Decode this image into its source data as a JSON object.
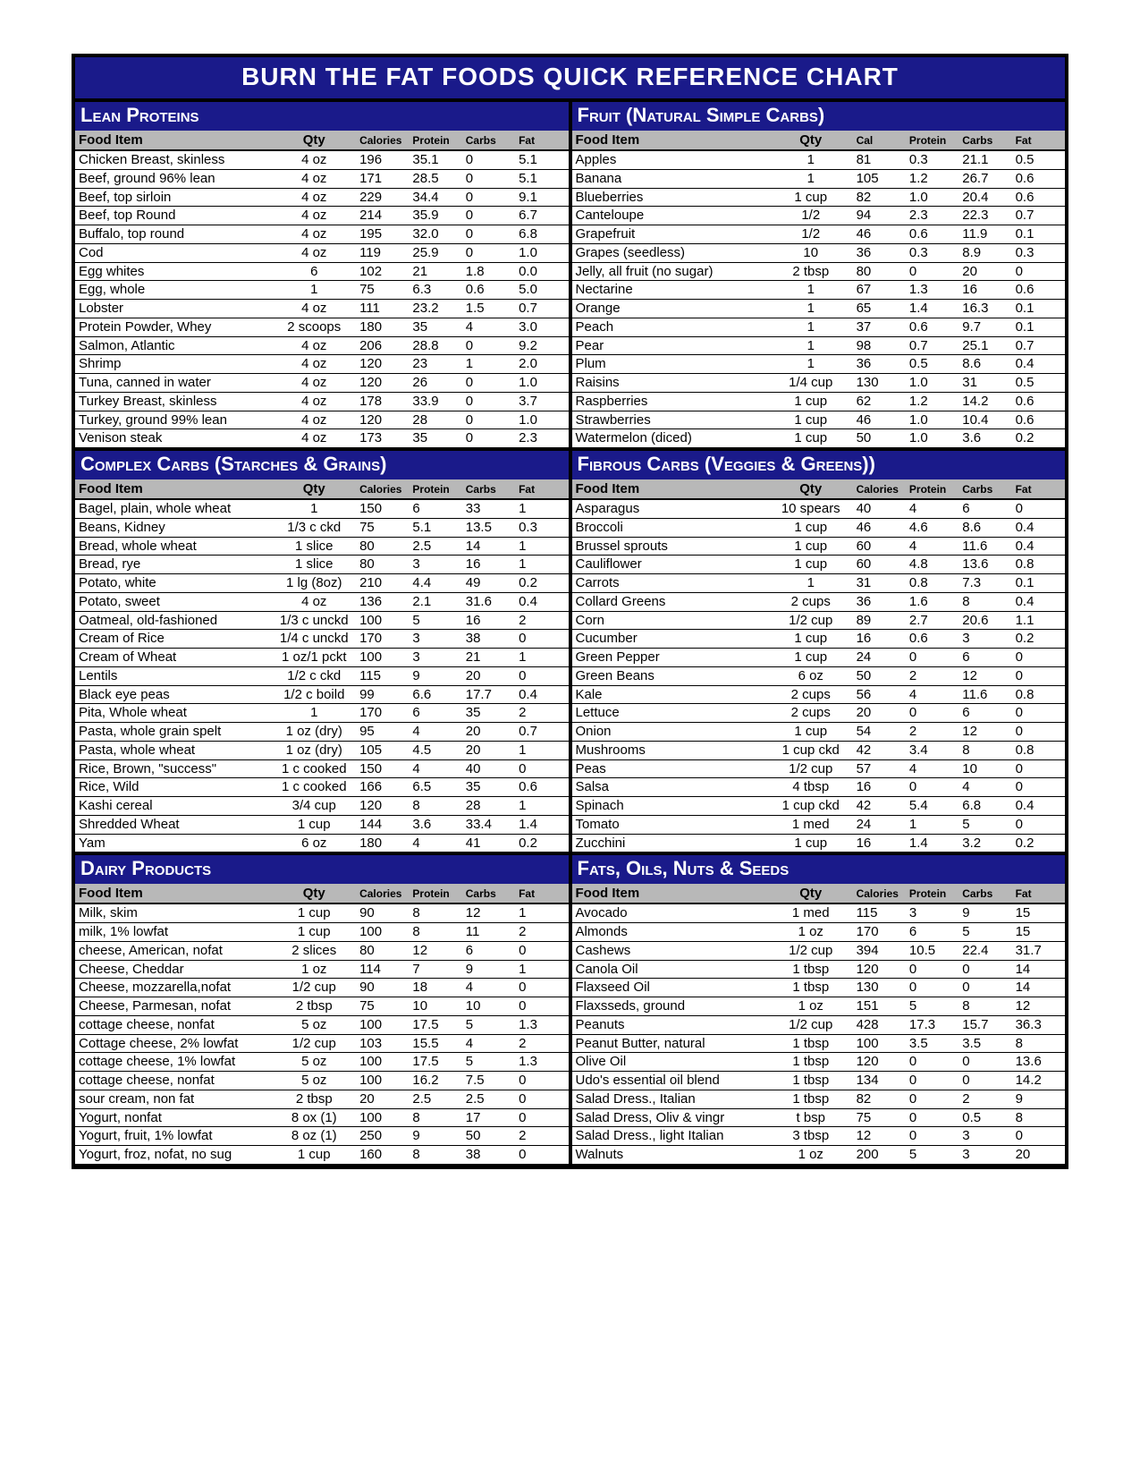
{
  "title": "BURN THE FAT FOODS QUICK REFERENCE CHART",
  "colors": {
    "header_bg": "#1a1a8a",
    "header_fg": "#ffffff",
    "table_header_bg": "#b8b8b8",
    "border": "#000000"
  },
  "columns": [
    "Food Item",
    "Qty",
    "Calories",
    "Protein",
    "Carbs",
    "Fat"
  ],
  "columns_alt": [
    "Food Item",
    "Qty",
    "Cal",
    "Protein",
    "Carbs",
    "Fat"
  ],
  "sections": [
    {
      "id": "lean-proteins",
      "title": "Lean Proteins",
      "use_alt_cols": false,
      "rows": [
        [
          "Chicken Breast, skinless",
          "4 oz",
          "196",
          "35.1",
          "0",
          "5.1"
        ],
        [
          "Beef, ground 96% lean",
          "4 oz",
          "171",
          "28.5",
          "0",
          "5.1"
        ],
        [
          "Beef, top sirloin",
          "4 oz",
          "229",
          "34.4",
          "0",
          "9.1"
        ],
        [
          "Beef, top Round",
          "4 oz",
          "214",
          "35.9",
          "0",
          "6.7"
        ],
        [
          "Buffalo, top round",
          "4 oz",
          "195",
          "32.0",
          "0",
          "6.8"
        ],
        [
          "Cod",
          "4 oz",
          "119",
          "25.9",
          "0",
          "1.0"
        ],
        [
          "Egg whites",
          "6",
          "102",
          "21",
          "1.8",
          "0.0"
        ],
        [
          "Egg, whole",
          "1",
          "75",
          "6.3",
          "0.6",
          "5.0"
        ],
        [
          "Lobster",
          "4 oz",
          "111",
          "23.2",
          "1.5",
          "0.7"
        ],
        [
          "Protein Powder, Whey",
          "2 scoops",
          "180",
          "35",
          "4",
          "3.0"
        ],
        [
          "Salmon, Atlantic",
          "4 oz",
          "206",
          "28.8",
          "0",
          "9.2"
        ],
        [
          "Shrimp",
          "4 oz",
          "120",
          "23",
          "1",
          "2.0"
        ],
        [
          "Tuna, canned in water",
          "4 oz",
          "120",
          "26",
          "0",
          "1.0"
        ],
        [
          "Turkey Breast, skinless",
          "4 oz",
          "178",
          "33.9",
          "0",
          "3.7"
        ],
        [
          "Turkey, ground 99% lean",
          "4 oz",
          "120",
          "28",
          "0",
          "1.0"
        ],
        [
          "Venison steak",
          "4 oz",
          "173",
          "35",
          "0",
          "2.3"
        ]
      ]
    },
    {
      "id": "fruit",
      "title": "Fruit (Natural Simple Carbs)",
      "use_alt_cols": true,
      "rows": [
        [
          "Apples",
          "1",
          "81",
          "0.3",
          "21.1",
          "0.5"
        ],
        [
          "Banana",
          "1",
          "105",
          "1.2",
          "26.7",
          "0.6"
        ],
        [
          "Blueberries",
          "1 cup",
          "82",
          "1.0",
          "20.4",
          "0.6"
        ],
        [
          "Canteloupe",
          "1/2",
          "94",
          "2.3",
          "22.3",
          "0.7"
        ],
        [
          "Grapefruit",
          "1/2",
          "46",
          "0.6",
          "11.9",
          "0.1"
        ],
        [
          "Grapes (seedless)",
          "10",
          "36",
          "0.3",
          "8.9",
          "0.3"
        ],
        [
          "Jelly, all fruit (no sugar)",
          "2 tbsp",
          "80",
          "0",
          "20",
          "0"
        ],
        [
          "Nectarine",
          "1",
          "67",
          "1.3",
          "16",
          "0.6"
        ],
        [
          "Orange",
          "1",
          "65",
          "1.4",
          "16.3",
          "0.1"
        ],
        [
          "Peach",
          "1",
          "37",
          "0.6",
          "9.7",
          "0.1"
        ],
        [
          "Pear",
          "1",
          "98",
          "0.7",
          "25.1",
          "0.7"
        ],
        [
          "Plum",
          "1",
          "36",
          "0.5",
          "8.6",
          "0.4"
        ],
        [
          "Raisins",
          "1/4 cup",
          "130",
          "1.0",
          "31",
          "0.5"
        ],
        [
          "Raspberries",
          "1 cup",
          "62",
          "1.2",
          "14.2",
          "0.6"
        ],
        [
          "Strawberries",
          "1 cup",
          "46",
          "1.0",
          "10.4",
          "0.6"
        ],
        [
          "Watermelon (diced)",
          "1 cup",
          "50",
          "1.0",
          "3.6",
          "0.2"
        ]
      ]
    },
    {
      "id": "complex-carbs",
      "title": "Complex Carbs (Starches & Grains)",
      "use_alt_cols": false,
      "rows": [
        [
          "Bagel, plain, whole wheat",
          "1",
          "150",
          "6",
          "33",
          "1"
        ],
        [
          "Beans, Kidney",
          "1/3 c ckd",
          "75",
          "5.1",
          "13.5",
          "0.3"
        ],
        [
          "Bread,  whole wheat",
          "1 slice",
          "80",
          "2.5",
          "14",
          "1"
        ],
        [
          "Bread, rye",
          "1 slice",
          "80",
          "3",
          "16",
          "1"
        ],
        [
          "Potato, white",
          "1 lg (8oz)",
          "210",
          "4.4",
          "49",
          "0.2"
        ],
        [
          "Potato, sweet",
          "4 oz",
          "136",
          "2.1",
          "31.6",
          "0.4"
        ],
        [
          "Oatmeal, old-fashioned",
          "1/3 c unckd",
          "100",
          "5",
          "16",
          "2"
        ],
        [
          "Cream of Rice",
          "1/4 c unckd",
          "170",
          "3",
          "38",
          "0"
        ],
        [
          "Cream of Wheat",
          "1 oz/1 pckt",
          "100",
          "3",
          "21",
          "1"
        ],
        [
          "Lentils",
          "1/2 c ckd",
          "115",
          "9",
          "20",
          "0"
        ],
        [
          "Black eye peas",
          "1/2 c boild",
          "99",
          "6.6",
          "17.7",
          "0.4"
        ],
        [
          "Pita, Whole wheat",
          "1",
          "170",
          "6",
          "35",
          "2"
        ],
        [
          "Pasta, whole grain spelt",
          "1 oz (dry)",
          "95",
          "4",
          "20",
          "0.7"
        ],
        [
          "Pasta, whole wheat",
          "1 oz (dry)",
          "105",
          "4.5",
          "20",
          "1"
        ],
        [
          "Rice, Brown, \"success\"",
          "1 c cooked",
          "150",
          "4",
          "40",
          "0"
        ],
        [
          "Rice, Wild",
          "1 c cooked",
          "166",
          "6.5",
          "35",
          "0.6"
        ],
        [
          "Kashi cereal",
          "3/4 cup",
          "120",
          "8",
          "28",
          "1"
        ],
        [
          "Shredded Wheat",
          "1 cup",
          "144",
          "3.6",
          "33.4",
          "1.4"
        ],
        [
          "Yam",
          "6 oz",
          "180",
          "4",
          "41",
          "0.2"
        ]
      ]
    },
    {
      "id": "fibrous-carbs",
      "title": "Fibrous Carbs (Veggies & Greens))",
      "use_alt_cols": false,
      "rows": [
        [
          "Asparagus",
          "10 spears",
          "40",
          "4",
          "6",
          "0"
        ],
        [
          "Broccoli",
          "1 cup",
          "46",
          "4.6",
          "8.6",
          "0.4"
        ],
        [
          "Brussel sprouts",
          "1 cup",
          "60",
          "4",
          "11.6",
          "0.4"
        ],
        [
          "Cauliflower",
          "1 cup",
          "60",
          "4.8",
          "13.6",
          "0.8"
        ],
        [
          "Carrots",
          "1",
          "31",
          "0.8",
          "7.3",
          "0.1"
        ],
        [
          "Collard Greens",
          "2 cups",
          "36",
          "1.6",
          "8",
          "0.4"
        ],
        [
          "Corn",
          "1/2 cup",
          "89",
          "2.7",
          "20.6",
          "1.1"
        ],
        [
          "Cucumber",
          "1 cup",
          "16",
          "0.6",
          "3",
          "0.2"
        ],
        [
          "Green Pepper",
          "1 cup",
          "24",
          "0",
          "6",
          "0"
        ],
        [
          "Green Beans",
          "6 oz",
          "50",
          "2",
          "12",
          "0"
        ],
        [
          "Kale",
          "2 cups",
          "56",
          "4",
          "11.6",
          "0.8"
        ],
        [
          "Lettuce",
          "2 cups",
          "20",
          "0",
          "6",
          "0"
        ],
        [
          "Onion",
          "1 cup",
          "54",
          "2",
          "12",
          "0"
        ],
        [
          "Mushrooms",
          "1 cup ckd",
          "42",
          "3.4",
          "8",
          "0.8"
        ],
        [
          "Peas",
          "1/2 cup",
          "57",
          "4",
          "10",
          "0"
        ],
        [
          "Salsa",
          "4 tbsp",
          "16",
          "0",
          "4",
          "0"
        ],
        [
          "Spinach",
          "1 cup ckd",
          "42",
          "5.4",
          "6.8",
          "0.4"
        ],
        [
          "Tomato",
          "1 med",
          "24",
          "1",
          "5",
          "0"
        ],
        [
          "Zucchini",
          "1 cup",
          "16",
          "1.4",
          "3.2",
          "0.2"
        ]
      ]
    },
    {
      "id": "dairy",
      "title": "Dairy Products",
      "use_alt_cols": false,
      "rows": [
        [
          "Milk, skim",
          "1 cup",
          "90",
          "8",
          "12",
          "1"
        ],
        [
          "milk, 1% lowfat",
          "1 cup",
          "100",
          "8",
          "11",
          "2"
        ],
        [
          "cheese, American, nofat",
          "2 slices",
          "80",
          "12",
          "6",
          "0"
        ],
        [
          "Cheese, Cheddar",
          "1 oz",
          "114",
          "7",
          "9",
          "1"
        ],
        [
          "Cheese, mozzarella,nofat",
          "1/2 cup",
          "90",
          "18",
          "4",
          "0"
        ],
        [
          "Cheese, Parmesan, nofat",
          "2 tbsp",
          "75",
          "10",
          "10",
          "0"
        ],
        [
          "cottage cheese, nonfat",
          "5 oz",
          "100",
          "17.5",
          "5",
          "1.3"
        ],
        [
          "Cottage cheese, 2% lowfat",
          "1/2 cup",
          "103",
          "15.5",
          "4",
          "2"
        ],
        [
          "cottage cheese, 1% lowfat",
          "5 oz",
          "100",
          "17.5",
          "5",
          "1.3"
        ],
        [
          "cottage cheese, nonfat",
          "5 oz",
          "100",
          "16.2",
          "7.5",
          "0"
        ],
        [
          "sour cream, non fat",
          "2 tbsp",
          "20",
          "2.5",
          "2.5",
          "0"
        ],
        [
          "Yogurt, nonfat",
          "8 ox (1)",
          "100",
          "8",
          "17",
          "0"
        ],
        [
          "Yogurt, fruit, 1% lowfat",
          "8 oz (1)",
          "250",
          "9",
          "50",
          "2"
        ],
        [
          "Yogurt, froz, nofat, no sug",
          "1 cup",
          "160",
          "8",
          "38",
          "0"
        ]
      ]
    },
    {
      "id": "fats",
      "title": "Fats, Oils, Nuts & Seeds",
      "use_alt_cols": false,
      "rows": [
        [
          "Avocado",
          "1 med",
          "115",
          "3",
          "9",
          "15"
        ],
        [
          "Almonds",
          "1 oz",
          "170",
          "6",
          "5",
          "15"
        ],
        [
          "Cashews",
          "1/2 cup",
          "394",
          "10.5",
          "22.4",
          "31.7"
        ],
        [
          "Canola Oil",
          "1 tbsp",
          "120",
          "0",
          "0",
          "14"
        ],
        [
          "Flaxseed Oil",
          "1 tbsp",
          "130",
          "0",
          "0",
          "14"
        ],
        [
          "Flaxsseds, ground",
          "1 oz",
          "151",
          "5",
          "8",
          "12"
        ],
        [
          "Peanuts",
          "1/2 cup",
          "428",
          "17.3",
          "15.7",
          "36.3"
        ],
        [
          "Peanut Butter, natural",
          "1 tbsp",
          "100",
          "3.5",
          "3.5",
          "8"
        ],
        [
          "Olive Oil",
          "1 tbsp",
          "120",
          "0",
          "0",
          "13.6"
        ],
        [
          "Udo's essential oil blend",
          "1 tbsp",
          "134",
          "0",
          "0",
          "14.2"
        ],
        [
          "Salad Dress., Italian",
          "1 tbsp",
          "82",
          "0",
          "2",
          "9"
        ],
        [
          "Salad Dress, Oliv & vingr",
          "t bsp",
          "75",
          "0",
          "0.5",
          "8"
        ],
        [
          "Salad Dress., light Italian",
          "3 tbsp",
          "12",
          "0",
          "3",
          "0"
        ],
        [
          "Walnuts",
          "1 oz",
          "200",
          "5",
          "3",
          "20"
        ]
      ]
    }
  ]
}
